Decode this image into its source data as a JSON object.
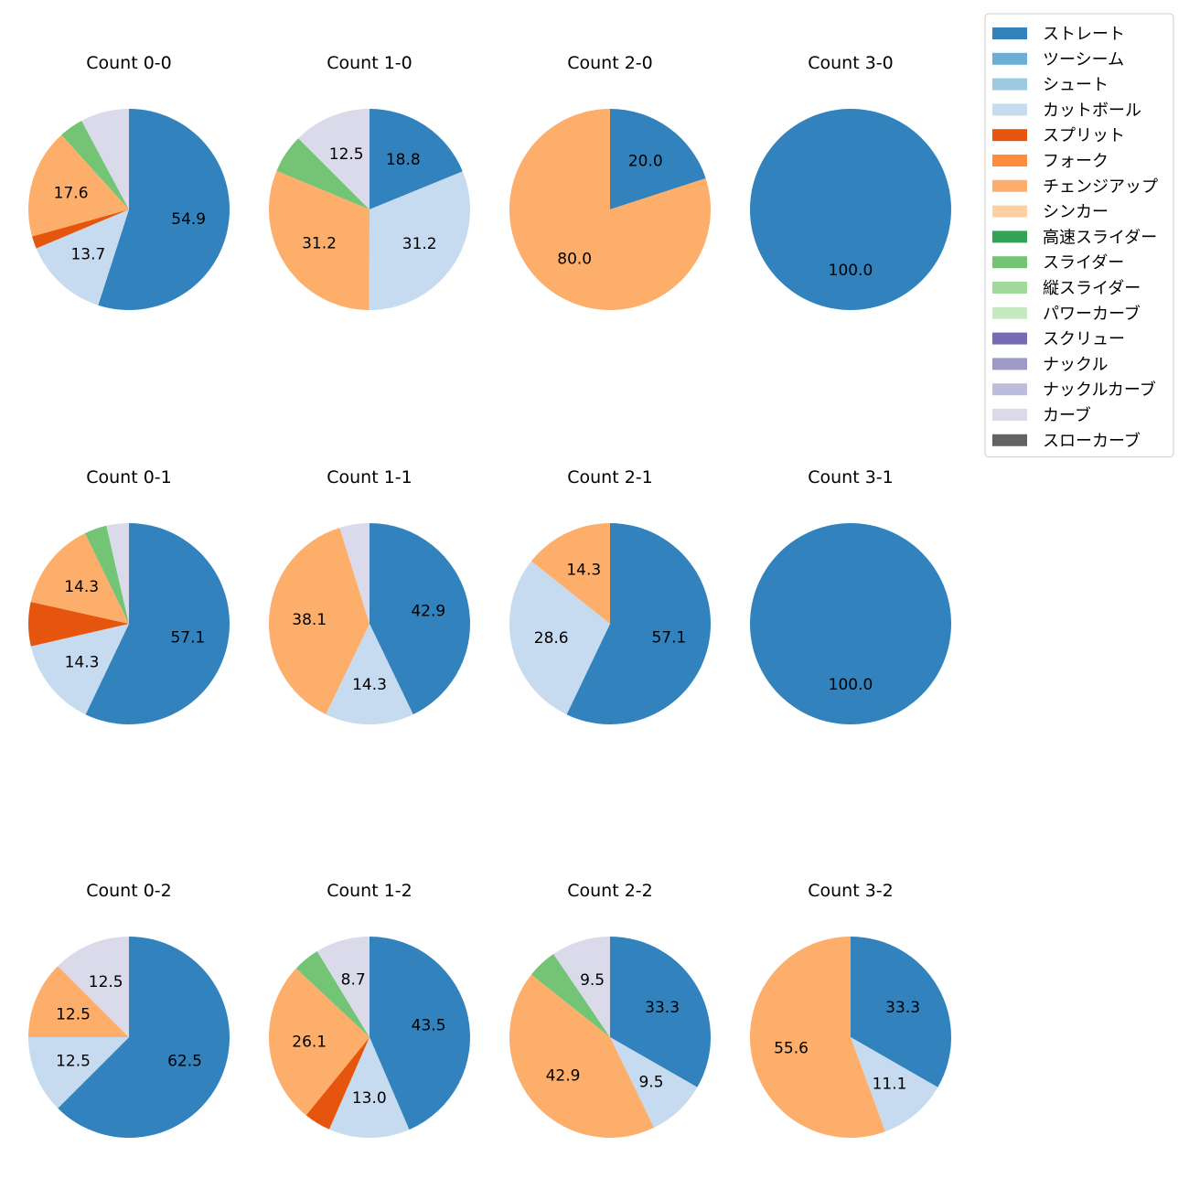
{
  "colors": {
    "ストレート": "#3182bd",
    "ツーシーム": "#6baed6",
    "シュート": "#9ecae1",
    "カットボール": "#c6dbef",
    "スプリット": "#e6550d",
    "フォーク": "#fd8d3c",
    "チェンジアップ": "#fdae6b",
    "シンカー": "#fdd0a2",
    "高速スライダー": "#31a354",
    "スライダー": "#74c476",
    "縦スライダー": "#a1d99b",
    "パワーカーブ": "#c7e9c0",
    "スクリュー": "#756bb1",
    "ナックル": "#9e9ac8",
    "ナックルカーブ": "#bcbddc",
    "カーブ": "#dadaeb",
    "スローカーブ": "#636363"
  },
  "legend": {
    "entries": [
      "ストレート",
      "ツーシーム",
      "シュート",
      "カットボール",
      "スプリット",
      "フォーク",
      "チェンジアップ",
      "シンカー",
      "高速スライダー",
      "スライダー",
      "縦スライダー",
      "パワーカーブ",
      "スクリュー",
      "ナックル",
      "ナックルカーブ",
      "カーブ",
      "スローカーブ"
    ],
    "placement": "top-right"
  },
  "chart_data": [
    {
      "type": "pie",
      "title": "Count 0-0",
      "slices": [
        {
          "label": "ストレート",
          "value": 54.9,
          "show": true
        },
        {
          "label": "カットボール",
          "value": 13.7,
          "show": true
        },
        {
          "label": "スプリット",
          "value": 2.0,
          "show": false
        },
        {
          "label": "チェンジアップ",
          "value": 17.6,
          "show": true
        },
        {
          "label": "スライダー",
          "value": 3.9,
          "show": false
        },
        {
          "label": "カーブ",
          "value": 7.8,
          "show": false
        }
      ]
    },
    {
      "type": "pie",
      "title": "Count 1-0",
      "slices": [
        {
          "label": "ストレート",
          "value": 18.8,
          "show": true
        },
        {
          "label": "カットボール",
          "value": 31.2,
          "show": true
        },
        {
          "label": "チェンジアップ",
          "value": 31.2,
          "show": true
        },
        {
          "label": "スライダー",
          "value": 6.2,
          "show": false
        },
        {
          "label": "カーブ",
          "value": 12.5,
          "show": true
        }
      ]
    },
    {
      "type": "pie",
      "title": "Count 2-0",
      "slices": [
        {
          "label": "ストレート",
          "value": 20.0,
          "show": true
        },
        {
          "label": "チェンジアップ",
          "value": 80.0,
          "show": true
        }
      ]
    },
    {
      "type": "pie",
      "title": "Count 3-0",
      "slices": [
        {
          "label": "ストレート",
          "value": 100.0,
          "show": true
        }
      ]
    },
    {
      "type": "pie",
      "title": "Count 0-1",
      "slices": [
        {
          "label": "ストレート",
          "value": 57.1,
          "show": true
        },
        {
          "label": "カットボール",
          "value": 14.3,
          "show": true
        },
        {
          "label": "スプリット",
          "value": 7.1,
          "show": false
        },
        {
          "label": "チェンジアップ",
          "value": 14.3,
          "show": true
        },
        {
          "label": "スライダー",
          "value": 3.6,
          "show": false
        },
        {
          "label": "カーブ",
          "value": 3.6,
          "show": false
        }
      ]
    },
    {
      "type": "pie",
      "title": "Count 1-1",
      "slices": [
        {
          "label": "ストレート",
          "value": 42.9,
          "show": true
        },
        {
          "label": "カットボール",
          "value": 14.3,
          "show": true
        },
        {
          "label": "チェンジアップ",
          "value": 38.1,
          "show": true
        },
        {
          "label": "カーブ",
          "value": 4.8,
          "show": false
        }
      ]
    },
    {
      "type": "pie",
      "title": "Count 2-1",
      "slices": [
        {
          "label": "ストレート",
          "value": 57.1,
          "show": true
        },
        {
          "label": "カットボール",
          "value": 28.6,
          "show": true
        },
        {
          "label": "チェンジアップ",
          "value": 14.3,
          "show": true
        }
      ]
    },
    {
      "type": "pie",
      "title": "Count 3-1",
      "slices": [
        {
          "label": "ストレート",
          "value": 100.0,
          "show": true
        }
      ]
    },
    {
      "type": "pie",
      "title": "Count 0-2",
      "slices": [
        {
          "label": "ストレート",
          "value": 62.5,
          "show": true
        },
        {
          "label": "カットボール",
          "value": 12.5,
          "show": true
        },
        {
          "label": "チェンジアップ",
          "value": 12.5,
          "show": true
        },
        {
          "label": "カーブ",
          "value": 12.5,
          "show": true
        }
      ]
    },
    {
      "type": "pie",
      "title": "Count 1-2",
      "slices": [
        {
          "label": "ストレート",
          "value": 43.5,
          "show": true
        },
        {
          "label": "カットボール",
          "value": 13.0,
          "show": true
        },
        {
          "label": "スプリット",
          "value": 4.3,
          "show": false
        },
        {
          "label": "チェンジアップ",
          "value": 26.1,
          "show": true
        },
        {
          "label": "スライダー",
          "value": 4.3,
          "show": false
        },
        {
          "label": "カーブ",
          "value": 8.7,
          "show": true
        }
      ]
    },
    {
      "type": "pie",
      "title": "Count 2-2",
      "slices": [
        {
          "label": "ストレート",
          "value": 33.3,
          "show": true
        },
        {
          "label": "カットボール",
          "value": 9.5,
          "show": true
        },
        {
          "label": "チェンジアップ",
          "value": 42.9,
          "show": true
        },
        {
          "label": "スライダー",
          "value": 4.8,
          "show": false
        },
        {
          "label": "カーブ",
          "value": 9.5,
          "show": true
        }
      ]
    },
    {
      "type": "pie",
      "title": "Count 3-2",
      "slices": [
        {
          "label": "ストレート",
          "value": 33.3,
          "show": true
        },
        {
          "label": "カットボール",
          "value": 11.1,
          "show": true
        },
        {
          "label": "チェンジアップ",
          "value": 55.6,
          "show": true
        }
      ]
    }
  ]
}
